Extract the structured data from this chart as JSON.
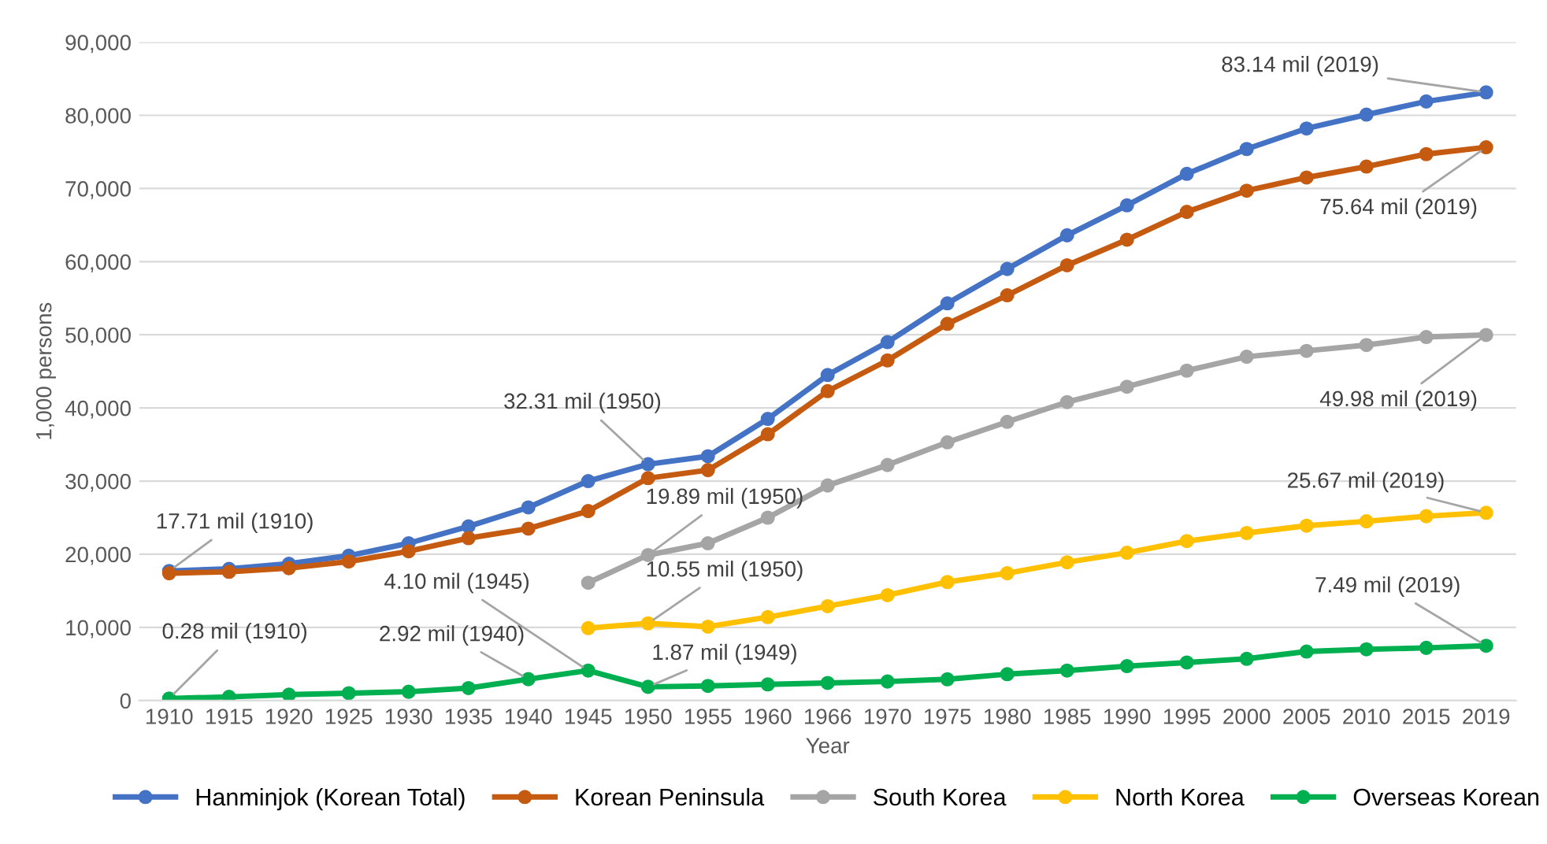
{
  "chart_data": {
    "type": "line",
    "xlabel": "Year",
    "ylabel": "1,000 persons",
    "categories": [
      "1910",
      "1915",
      "1920",
      "1925",
      "1930",
      "1935",
      "1940",
      "1945",
      "1950",
      "1955",
      "1960",
      "1966",
      "1970",
      "1975",
      "1980",
      "1985",
      "1990",
      "1995",
      "2000",
      "2005",
      "2010",
      "2015",
      "2019"
    ],
    "series": [
      {
        "name": "Hanminjok (Korean Total)",
        "color": "#4472c4",
        "values": [
          17710,
          18000,
          18700,
          19800,
          21500,
          23800,
          26400,
          30000,
          32310,
          33400,
          38500,
          44500,
          49000,
          54300,
          59000,
          63600,
          67700,
          72000,
          75400,
          78200,
          80100,
          81900,
          83140
        ]
      },
      {
        "name": "Korean Peninsula",
        "color": "#c55a11",
        "values": [
          17400,
          17600,
          18100,
          19000,
          20400,
          22200,
          23500,
          25900,
          30400,
          31500,
          36400,
          42300,
          46500,
          51500,
          55400,
          59500,
          63000,
          66800,
          69700,
          71500,
          73000,
          74700,
          75640
        ]
      },
      {
        "name": "South Korea",
        "color": "#a5a5a5",
        "values": [
          null,
          null,
          null,
          null,
          null,
          null,
          null,
          16100,
          19890,
          21500,
          25000,
          29400,
          32200,
          35300,
          38100,
          40800,
          42900,
          45100,
          47000,
          47800,
          48600,
          49700,
          49980
        ]
      },
      {
        "name": "North Korea",
        "color": "#ffc000",
        "values": [
          null,
          null,
          null,
          null,
          null,
          null,
          null,
          9900,
          10550,
          10100,
          11400,
          12900,
          14400,
          16200,
          17400,
          18900,
          20200,
          21800,
          22900,
          23900,
          24500,
          25200,
          25670
        ]
      },
      {
        "name": "Overseas Korean",
        "color": "#00b050",
        "values": [
          280,
          500,
          800,
          1000,
          1200,
          1700,
          2920,
          4100,
          1870,
          2000,
          2200,
          2400,
          2600,
          2900,
          3600,
          4100,
          4700,
          5200,
          5700,
          6700,
          7000,
          7200,
          7490
        ]
      }
    ],
    "ylim": [
      0,
      90000
    ],
    "yticks": [
      0,
      {
        "value": 10000,
        "label": "10,000"
      },
      {
        "value": 20000,
        "label": "20,000"
      },
      {
        "value": 30000,
        "label": "30,000"
      },
      {
        "value": 40000,
        "label": "40,000"
      },
      {
        "value": 50000,
        "label": "50,000"
      },
      {
        "value": 60000,
        "label": "60,000"
      },
      {
        "value": 70000,
        "label": "70,000"
      },
      {
        "value": 80000,
        "label": "80,000"
      },
      {
        "value": 90000,
        "label": "90,000"
      }
    ],
    "grid": "y",
    "legend": "bottom",
    "marker": "circle",
    "line_style": "solid",
    "annotations": [
      {
        "text": "17.71 mil (1910)",
        "x": "1910",
        "y": 17710
      },
      {
        "text": "0.28 mil (1910)",
        "x": "1910",
        "y": 280
      },
      {
        "text": "2.92 mil (1940)",
        "x": "1940",
        "y": 2920
      },
      {
        "text": "4.10 mil (1945)",
        "x": "1945",
        "y": 4100
      },
      {
        "text": "1.87 mil (1949)",
        "x": "1950",
        "y": 1870
      },
      {
        "text": "32.31 mil (1950)",
        "x": "1950",
        "y": 32310
      },
      {
        "text": "19.89 mil (1950)",
        "x": "1950",
        "y": 19890
      },
      {
        "text": "10.55 mil (1950)",
        "x": "1950",
        "y": 10550
      },
      {
        "text": "83.14 mil (2019)",
        "x": "2019",
        "y": 83140
      },
      {
        "text": "75.64 mil (2019)",
        "x": "2019",
        "y": 75640
      },
      {
        "text": "49.98 mil (2019)",
        "x": "2019",
        "y": 49980
      },
      {
        "text": "25.67 mil (2019)",
        "x": "2019",
        "y": 25670
      },
      {
        "text": "7.49 mil (2019)",
        "x": "2019",
        "y": 7490
      }
    ]
  }
}
